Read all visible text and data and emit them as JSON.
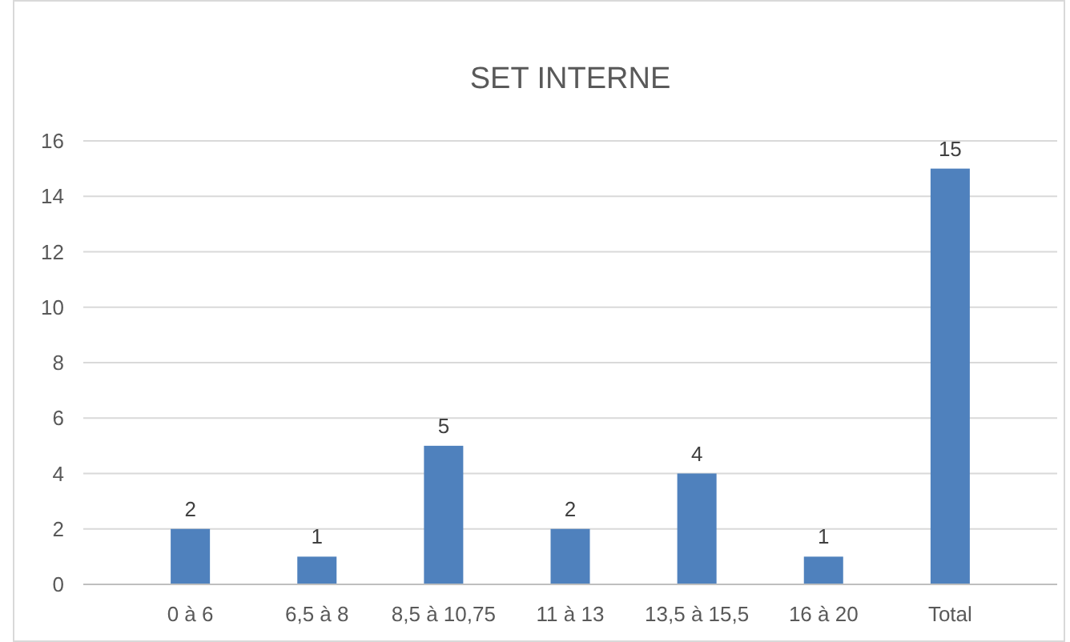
{
  "chart_data": {
    "type": "bar",
    "title": "SET INTERNE",
    "categories": [
      "0 à 6",
      "6,5 à 8",
      "8,5 à 10,75",
      "11 à 13",
      "13,5 à 15,5",
      "16 à 20",
      "Total"
    ],
    "values": [
      2,
      1,
      5,
      2,
      4,
      1,
      15
    ],
    "color": "#4f81bd",
    "ylim": [
      0,
      16
    ],
    "yticks": [
      0,
      2,
      4,
      6,
      8,
      10,
      12,
      14,
      16
    ],
    "grid": "y",
    "data_labels": true
  }
}
